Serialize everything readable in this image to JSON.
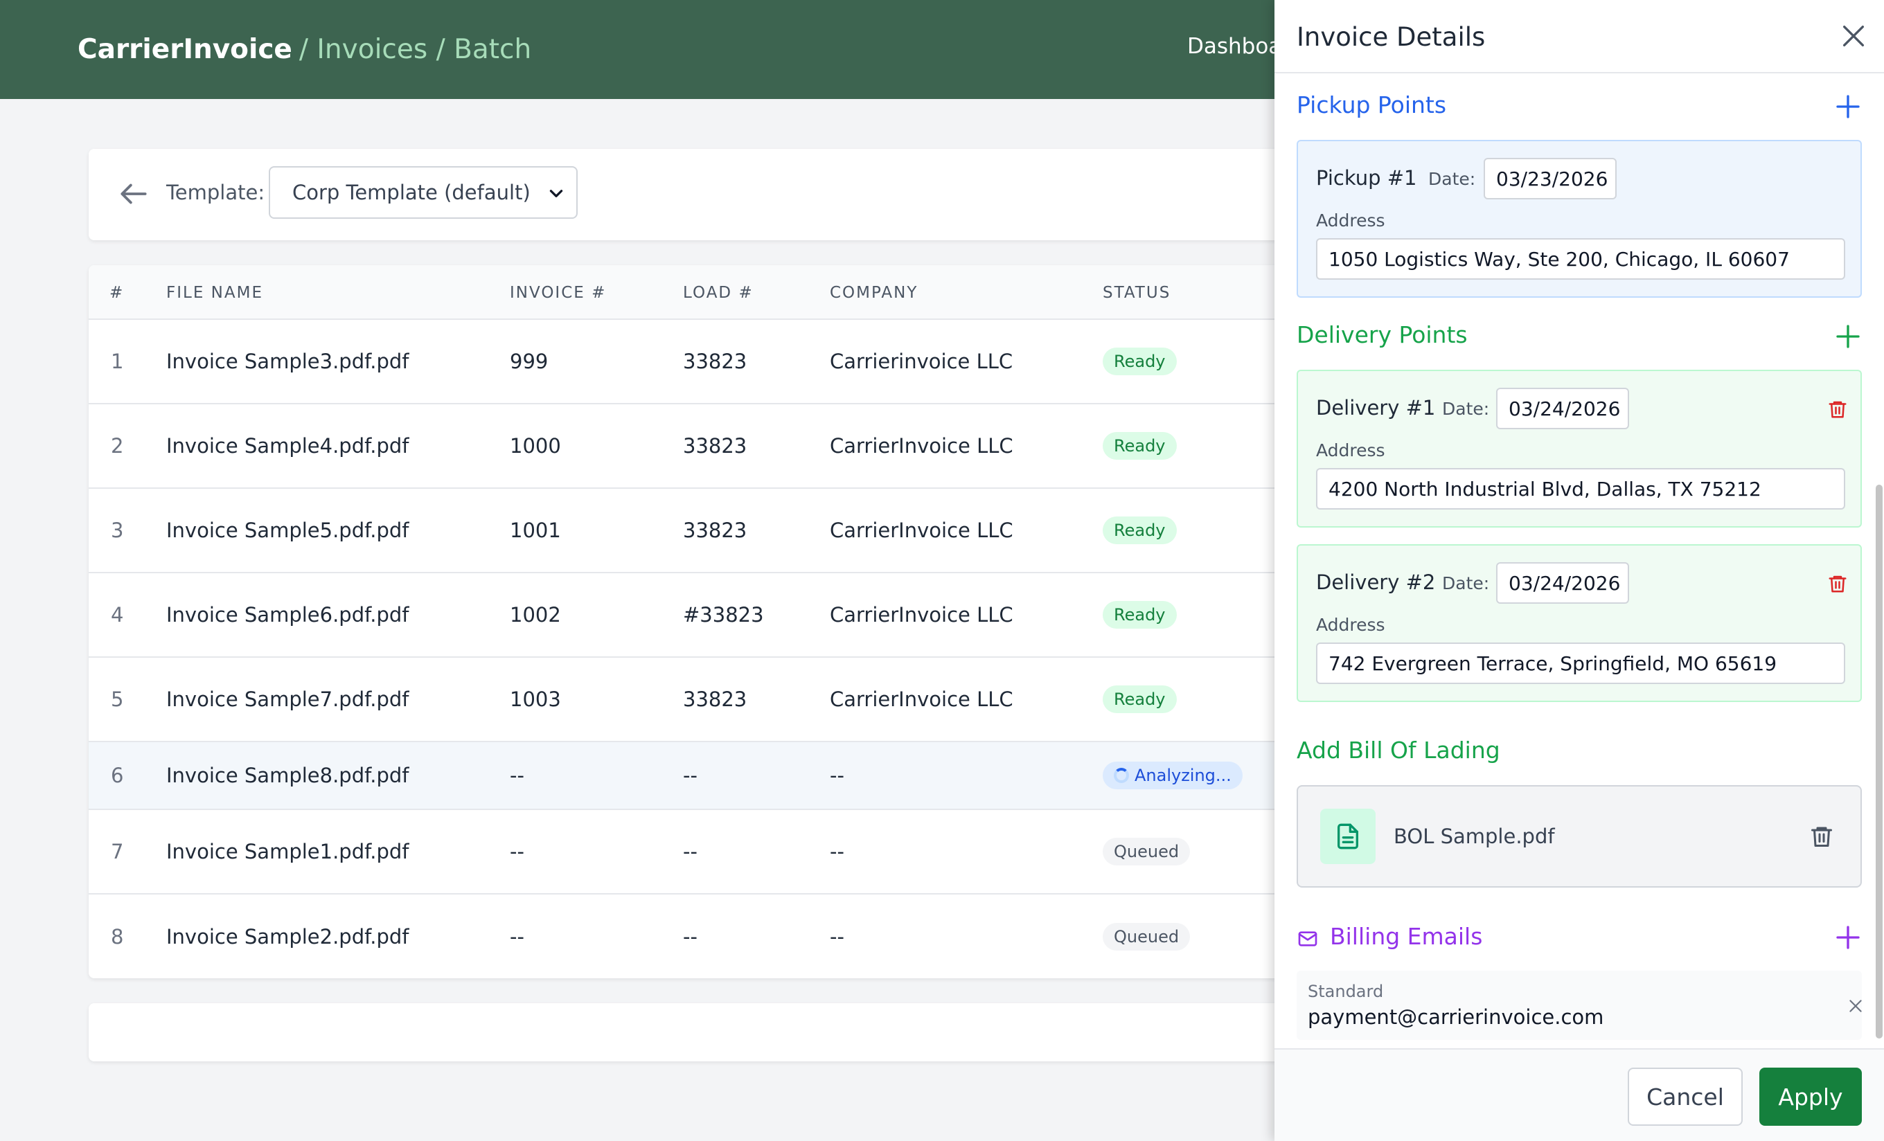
{
  "header": {
    "app_name": "CarrierInvoice",
    "breadcrumb": "/ Invoices / Batch",
    "nav_dashboard": "Dashboa"
  },
  "template": {
    "label": "Template:",
    "selected": "Corp Template (default)"
  },
  "table": {
    "columns": {
      "num": "#",
      "file": "FILE NAME",
      "invoice": "INVOICE #",
      "load": "LOAD #",
      "company": "COMPANY",
      "status": "STATUS"
    },
    "rows": [
      {
        "num": "1",
        "file": "Invoice Sample3.pdf.pdf",
        "invoice": "999",
        "load": "33823",
        "company": "Carrierinvoice LLC",
        "status": "Ready"
      },
      {
        "num": "2",
        "file": "Invoice Sample4.pdf.pdf",
        "invoice": "1000",
        "load": "33823",
        "company": "CarrierInvoice LLC",
        "status": "Ready"
      },
      {
        "num": "3",
        "file": "Invoice Sample5.pdf.pdf",
        "invoice": "1001",
        "load": "33823",
        "company": "CarrierInvoice LLC",
        "status": "Ready"
      },
      {
        "num": "4",
        "file": "Invoice Sample6.pdf.pdf",
        "invoice": "1002",
        "load": "#33823",
        "company": "CarrierInvoice LLC",
        "status": "Ready"
      },
      {
        "num": "5",
        "file": "Invoice Sample7.pdf.pdf",
        "invoice": "1003",
        "load": "33823",
        "company": "CarrierInvoice LLC",
        "status": "Ready"
      },
      {
        "num": "6",
        "file": "Invoice Sample8.pdf.pdf",
        "invoice": "--",
        "load": "--",
        "company": "--",
        "status": "Analyzing..."
      },
      {
        "num": "7",
        "file": "Invoice Sample1.pdf.pdf",
        "invoice": "--",
        "load": "--",
        "company": "--",
        "status": "Queued"
      },
      {
        "num": "8",
        "file": "Invoice Sample2.pdf.pdf",
        "invoice": "--",
        "load": "--",
        "company": "--",
        "status": "Queued"
      }
    ]
  },
  "panel": {
    "title": "Invoice Details",
    "pickup": {
      "title": "Pickup Points",
      "items": [
        {
          "label": "Pickup #1",
          "date_label": "Date:",
          "date": "03/23/2026",
          "address_label": "Address",
          "address": "1050 Logistics Way, Ste 200, Chicago, IL 60607"
        }
      ]
    },
    "delivery": {
      "title": "Delivery Points",
      "items": [
        {
          "label": "Delivery #1",
          "date_label": "Date:",
          "date": "03/24/2026",
          "address_label": "Address",
          "address": "4200 North Industrial Blvd, Dallas, TX 75212"
        },
        {
          "label": "Delivery #2",
          "date_label": "Date:",
          "date": "03/24/2026",
          "address_label": "Address",
          "address": "742 Evergreen Terrace, Springfield, MO 65619"
        }
      ]
    },
    "bol": {
      "title": "Add Bill Of Lading",
      "file": "BOL Sample.pdf"
    },
    "billing": {
      "title": "Billing Emails",
      "type": "Standard",
      "email": "payment@carrierinvoice.com"
    },
    "cancel_label": "Cancel",
    "apply_label": "Apply"
  },
  "colors": {
    "header_bg": "#3d6450",
    "pickup_accent": "#2563eb",
    "delivery_accent": "#16a34a",
    "billing_accent": "#9333ea",
    "apply_bg": "#15803d",
    "delete_red": "#dc2626"
  }
}
